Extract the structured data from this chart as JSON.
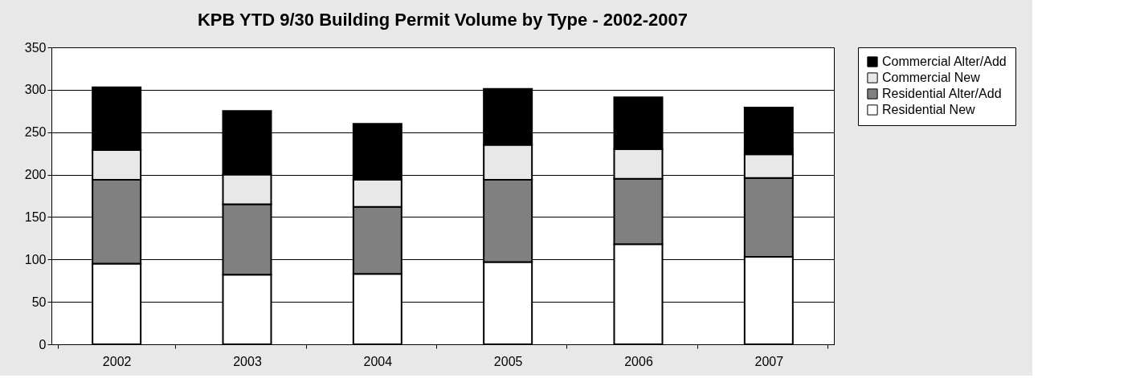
{
  "chart_data": {
    "type": "bar",
    "title": "KPB YTD 9/30 Building Permit Volume by Type - 2002-2007",
    "categories": [
      "2002",
      "2003",
      "2004",
      "2005",
      "2006",
      "2007"
    ],
    "stacked": true,
    "series": [
      {
        "name": "Residential New",
        "color": "#ffffff",
        "values": [
          95,
          82,
          83,
          97,
          118,
          103
        ]
      },
      {
        "name": "Residential Alter/Add",
        "color": "#808080",
        "values": [
          99,
          83,
          79,
          97,
          77,
          93
        ]
      },
      {
        "name": "Commercial New",
        "color": "#e8e8e8",
        "values": [
          35,
          35,
          32,
          41,
          35,
          28
        ]
      },
      {
        "name": "Commercial Alter/Add",
        "color": "#000000",
        "values": [
          74,
          75,
          66,
          66,
          61,
          55
        ]
      }
    ],
    "ylim": [
      0,
      350
    ],
    "yticks": [
      0,
      50,
      100,
      150,
      200,
      250,
      300,
      350
    ],
    "grid": "y",
    "legend": "right"
  }
}
